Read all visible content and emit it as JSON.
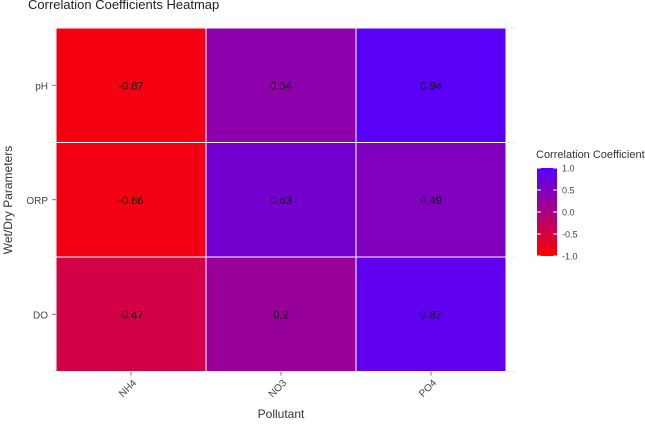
{
  "chart_data": {
    "type": "heatmap",
    "title": "Correlation Coefficients Heatmap",
    "xlabel": "Pollutant",
    "ylabel": "Wet/Dry Parameters",
    "x_categories": [
      "NH4",
      "NO3",
      "PO4"
    ],
    "y_categories": [
      "pH",
      "ORP",
      "DO"
    ],
    "cells": [
      {
        "x": "NH4",
        "y": "pH",
        "value": -0.87,
        "label": "-0.87"
      },
      {
        "x": "NO3",
        "y": "pH",
        "value": 0.34,
        "label": "0.34"
      },
      {
        "x": "PO4",
        "y": "pH",
        "value": 0.94,
        "label": "0.94"
      },
      {
        "x": "NH4",
        "y": "ORP",
        "value": -0.86,
        "label": "-0.86"
      },
      {
        "x": "NO3",
        "y": "ORP",
        "value": 0.63,
        "label": "0.63"
      },
      {
        "x": "PO4",
        "y": "ORP",
        "value": 0.49,
        "label": "0.49"
      },
      {
        "x": "NH4",
        "y": "DO",
        "value": -0.47,
        "label": "-0.47"
      },
      {
        "x": "NO3",
        "y": "DO",
        "value": 0.2,
        "label": "0.2"
      },
      {
        "x": "PO4",
        "y": "DO",
        "value": 0.87,
        "label": "0.87"
      }
    ],
    "color_scale": {
      "low_color": "#ff0000",
      "high_color": "#5500ff",
      "limits": [
        -1,
        1
      ]
    },
    "legend": {
      "title": "Correlation Coefficient",
      "ticks": [
        "1.0",
        "0.5",
        "0.0",
        "-0.5",
        "-1.0"
      ],
      "tick_values": [
        1.0,
        0.5,
        0.0,
        -0.5,
        -1.0
      ],
      "position": "right"
    },
    "grid": true
  }
}
